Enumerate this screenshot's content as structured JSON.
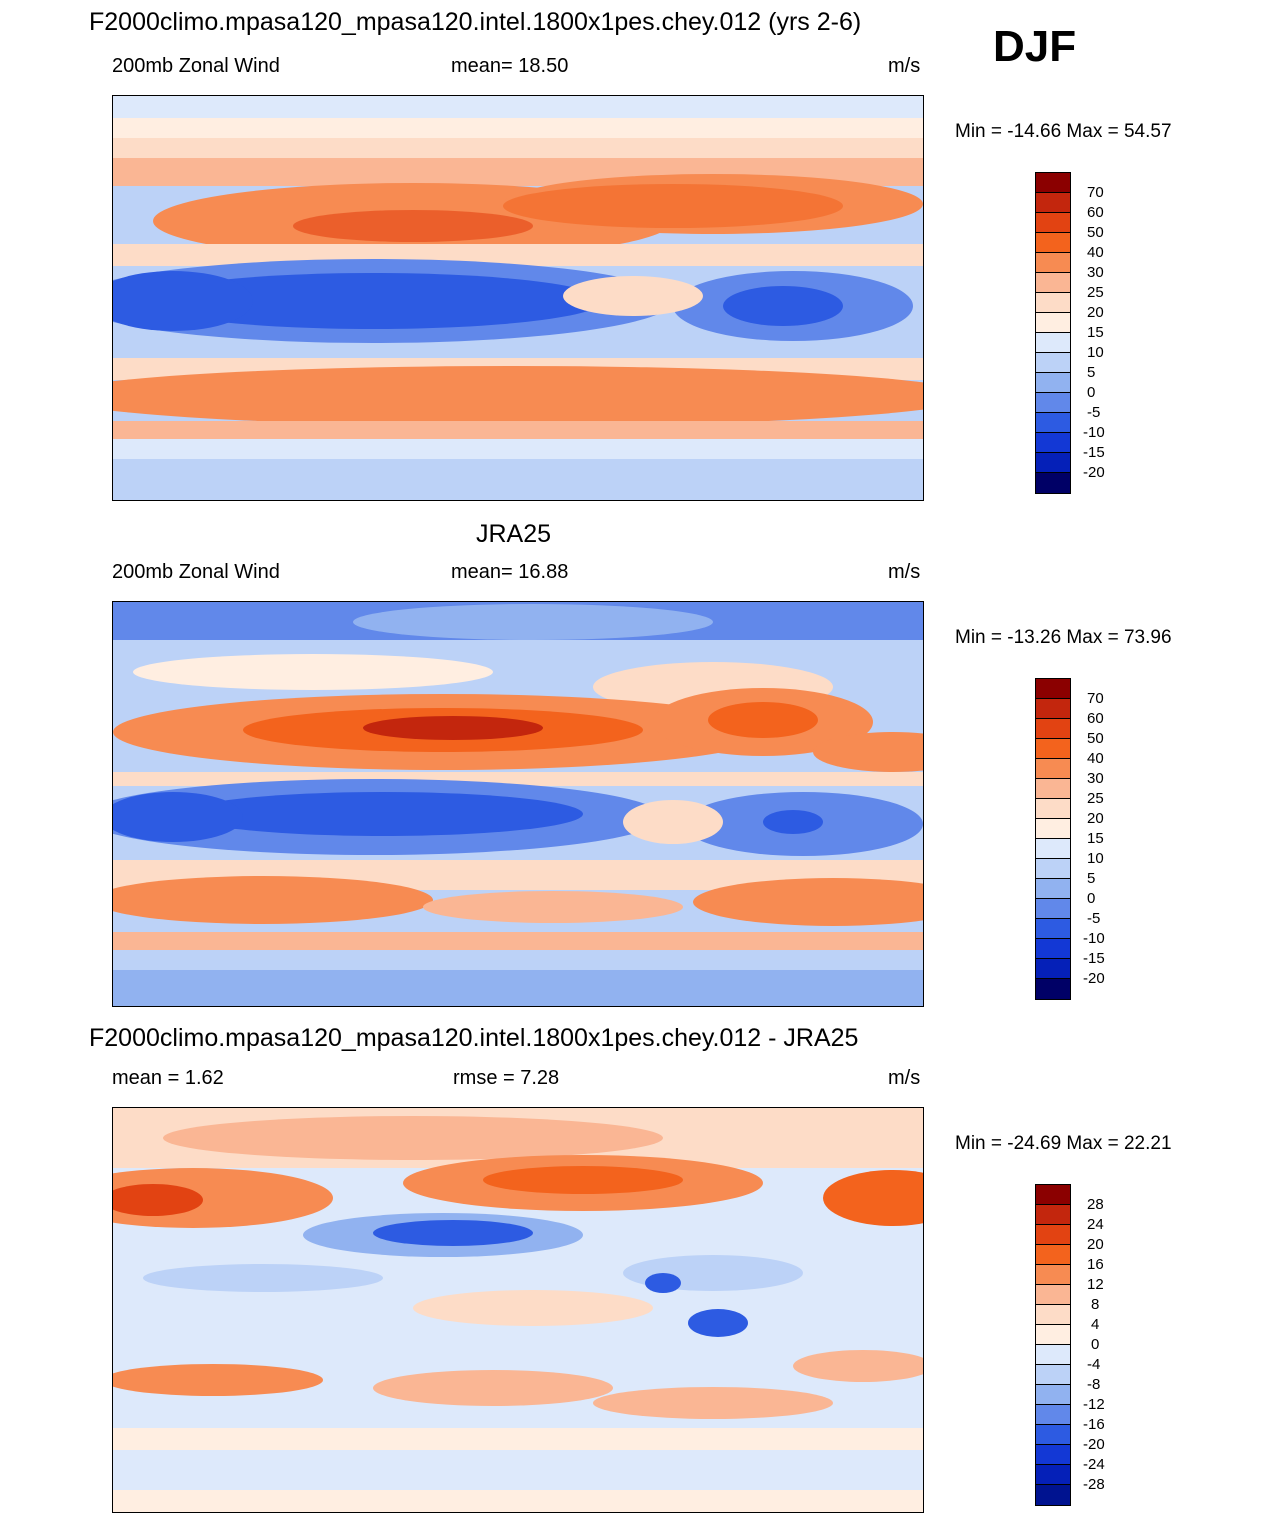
{
  "season": "DJF",
  "units": "m/s",
  "palette_abs": [
    "#8b0000",
    "#c3260d",
    "#e24312",
    "#f3631d",
    "#f78b52",
    "#fab694",
    "#fddcc7",
    "#ffeee1",
    "#dde9fb",
    "#bcd2f7",
    "#91b2f0",
    "#6188ea",
    "#2d5be2",
    "#1338d5",
    "#0520b8",
    "#001390",
    "#000066"
  ],
  "palette_diff": [
    "#8b0000",
    "#c3260d",
    "#e24312",
    "#f3631d",
    "#f78b52",
    "#fab694",
    "#fddcc7",
    "#ffeee1",
    "#dde9fb",
    "#bcd2f7",
    "#91b2f0",
    "#6188ea",
    "#2d5be2",
    "#1338d5",
    "#0520b8",
    "#001390"
  ],
  "panels": [
    {
      "title": "F2000climo.mpasa120_mpasa120.intel.1800x1pes.chey.012 (yrs 2-6)",
      "left_label": "200mb Zonal Wind",
      "center_label": "mean=  18.50",
      "right_label": "m/s",
      "minmax": "Min = -14.66 Max =  54.57",
      "ticks": [
        "70",
        "60",
        "50",
        "40",
        "30",
        "25",
        "20",
        "15",
        "10",
        "5",
        "0",
        "-5",
        "-10",
        "-15",
        "-20"
      ]
    },
    {
      "title": "JRA25",
      "left_label": "200mb Zonal Wind",
      "center_label": "mean=  16.88",
      "right_label": "m/s",
      "minmax": "Min = -13.26 Max =  73.96",
      "ticks": [
        "70",
        "60",
        "50",
        "40",
        "30",
        "25",
        "20",
        "15",
        "10",
        "5",
        "0",
        "-5",
        "-10",
        "-15",
        "-20"
      ]
    },
    {
      "title": "F2000climo.mpasa120_mpasa120.intel.1800x1pes.chey.012 - JRA25",
      "left_label": "mean =   1.62",
      "center_label": "rmse =   7.28",
      "right_label": "m/s",
      "minmax": "Min = -24.69 Max =  22.21",
      "ticks": [
        "28",
        "24",
        "20",
        "16",
        "12",
        "8",
        "4",
        "0",
        "-4",
        "-8",
        "-12",
        "-16",
        "-20",
        "-24",
        "-28"
      ]
    }
  ]
}
